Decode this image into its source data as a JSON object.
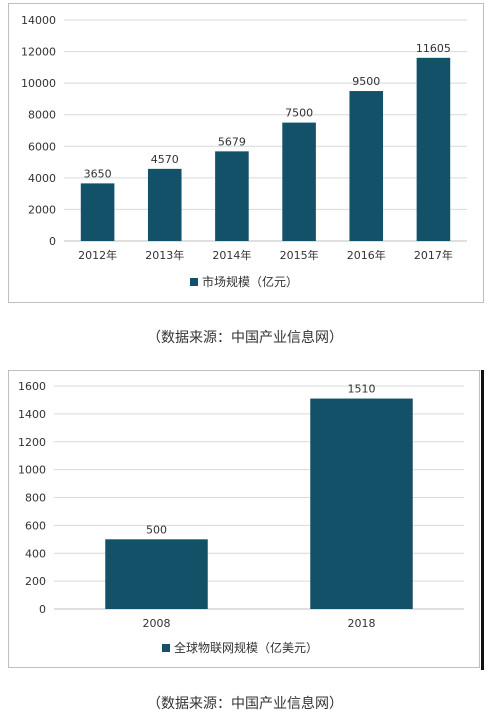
{
  "colors": {
    "bar": "#135169",
    "grid": "#d9d9d9",
    "axis": "#bfbfbf",
    "text": "#333333"
  },
  "chart_data": [
    {
      "type": "bar",
      "categories": [
        "2012年",
        "2013年",
        "2014年",
        "2015年",
        "2016年",
        "2017年"
      ],
      "series": [
        {
          "name": "市场规模（亿元）",
          "values": [
            3650,
            4570,
            5679,
            7500,
            9500,
            11605
          ]
        }
      ],
      "data_labels": [
        "3650",
        "4570",
        "5679",
        "7500",
        "9500",
        "11605"
      ],
      "yticks": [
        0,
        2000,
        4000,
        6000,
        8000,
        10000,
        12000,
        14000
      ],
      "ylim": [
        0,
        14000
      ],
      "grid": true,
      "legend": "bottom"
    },
    {
      "type": "bar",
      "categories": [
        "2008",
        "2018"
      ],
      "series": [
        {
          "name": "全球物联网规模（亿美元）",
          "values": [
            500,
            1510
          ]
        }
      ],
      "data_labels": [
        "500",
        "1510"
      ],
      "yticks": [
        0,
        200,
        400,
        600,
        800,
        1000,
        1200,
        1400,
        1600
      ],
      "ylim": [
        0,
        1600
      ],
      "grid": true,
      "legend": "bottom"
    }
  ],
  "captions": [
    "（数据来源：中国产业信息网）",
    "（数据来源：中国产业信息网）"
  ]
}
